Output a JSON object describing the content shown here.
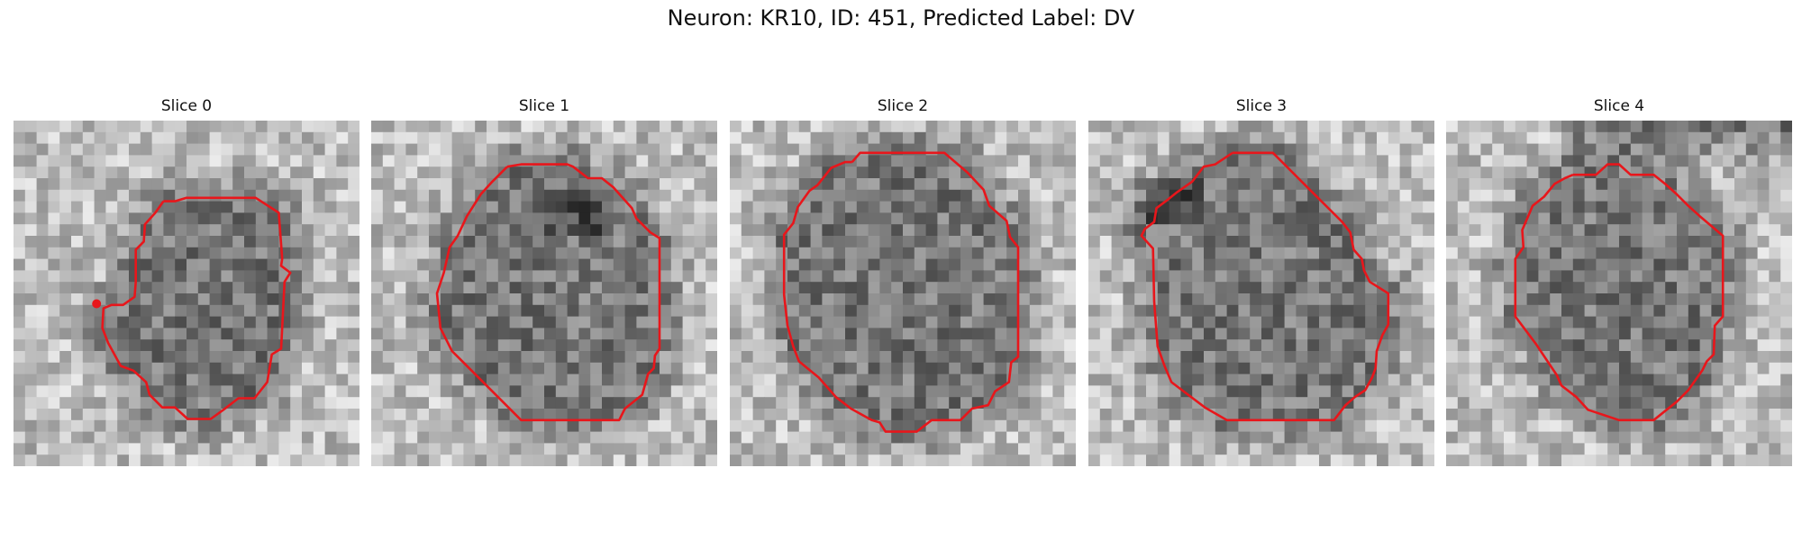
{
  "figure": {
    "title": "Neuron: KR10, ID: 451, Predicted Label: DV"
  },
  "panels": [
    {
      "title": "Slice 0"
    },
    {
      "title": "Slice 1"
    },
    {
      "title": "Slice 2"
    },
    {
      "title": "Slice 3"
    },
    {
      "title": "Slice 4"
    }
  ],
  "colors": {
    "contour": "#e8161b",
    "background": "#ffffff"
  }
}
